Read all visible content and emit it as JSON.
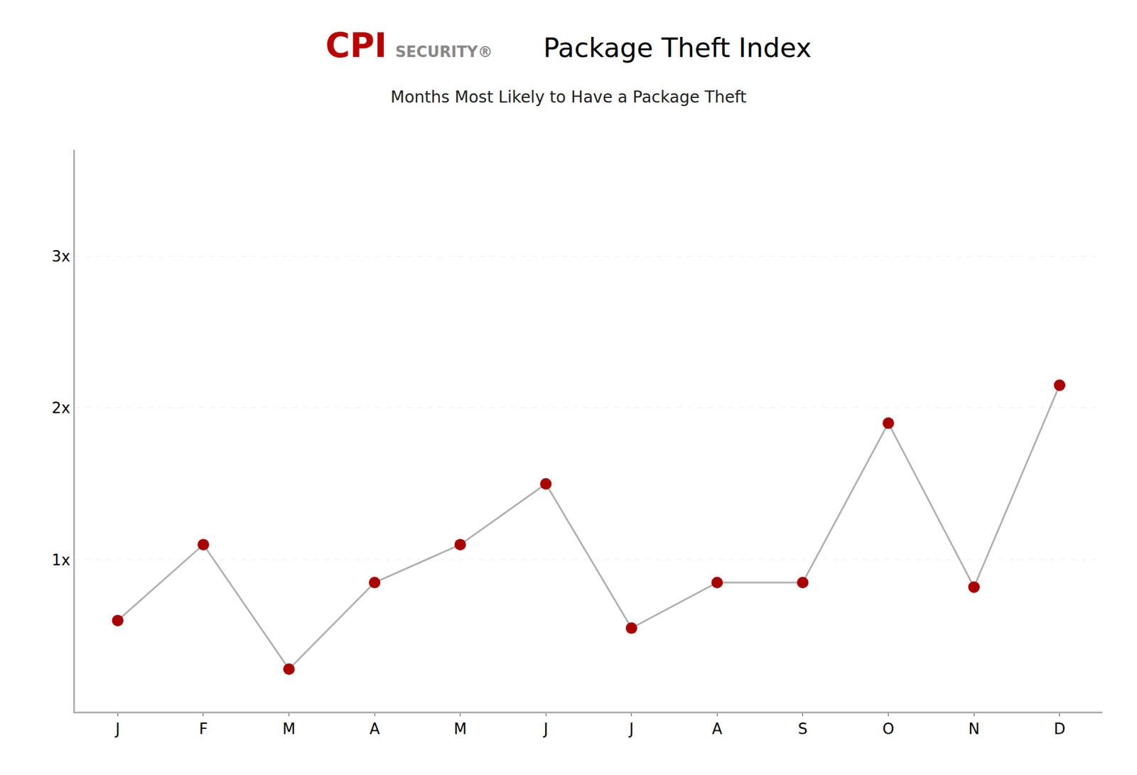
{
  "chart_data": {
    "type": "line",
    "title": "Package Theft Index",
    "subtitle": "Months Most Likely to Have a Package Theft",
    "annotations": [
      {
        "text": "CPI",
        "color": "#bb0000"
      },
      {
        "text": "SECURITY®",
        "color": "#888888"
      }
    ],
    "categories": [
      "J",
      "F",
      "M",
      "A",
      "M",
      "J",
      "J",
      "A",
      "S",
      "O",
      "N",
      "D"
    ],
    "values": [
      0.6,
      1.1,
      0.28,
      0.85,
      1.1,
      1.5,
      0.55,
      0.85,
      0.85,
      1.9,
      0.82,
      2.15
    ],
    "color": "#b0b0b0",
    "colors": [
      "#aa0000",
      "#aa0000",
      "#aa0000",
      "#aa0000",
      "#aa0000",
      "#aa0000",
      "#aa0000",
      "#aa0000",
      "#aa0000",
      "#aa0000",
      "#aa0000",
      "#aa0000"
    ],
    "marker": "circle",
    "ylim": [
      0,
      3.7
    ],
    "yticks": [
      {
        "value": 1,
        "label": "1x"
      },
      {
        "value": 2,
        "label": "2x"
      },
      {
        "value": 3,
        "label": "3x"
      }
    ],
    "grid": true
  }
}
